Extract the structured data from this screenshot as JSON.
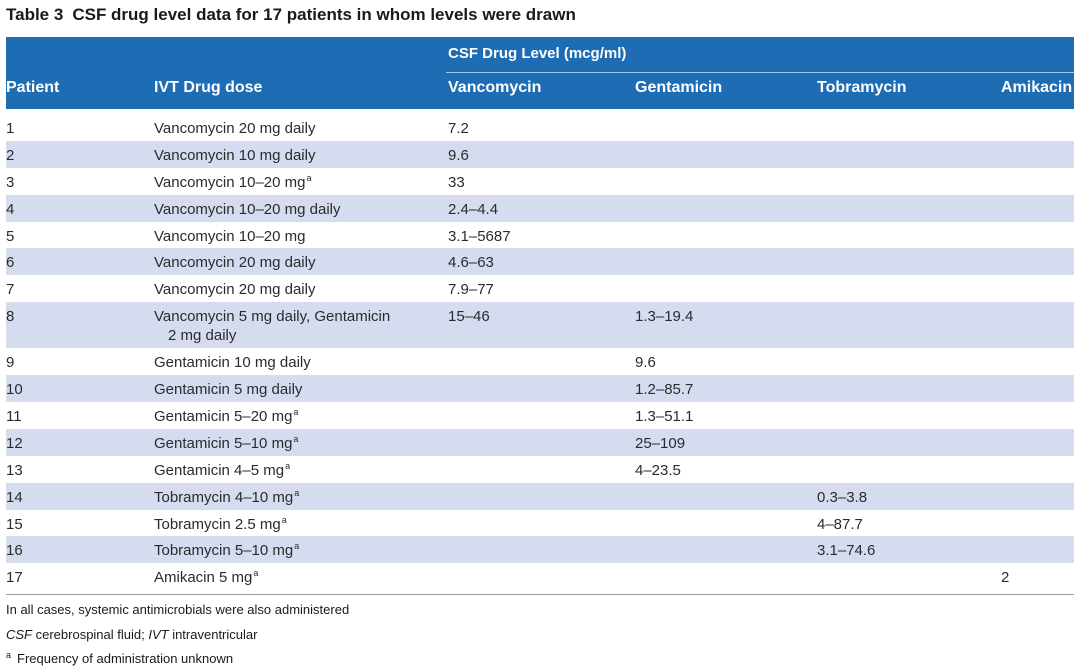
{
  "caption": {
    "label": "Table 3",
    "title": "CSF drug level data for 17 patients in whom levels were drawn"
  },
  "header": {
    "patient": "Patient",
    "dose": "IVT Drug dose",
    "span_title": "CSF Drug Level (mcg/ml)",
    "vancomycin": "Vancomycin",
    "gentamicin": "Gentamicin",
    "tobramycin": "Tobramycin",
    "amikacin": "Amikacin"
  },
  "rows": [
    {
      "patient": "1",
      "dose": "Vancomycin 20 mg daily",
      "dose_sup": "",
      "vancomycin": "7.2",
      "gentamicin": "",
      "tobramycin": "",
      "amikacin": ""
    },
    {
      "patient": "2",
      "dose": "Vancomycin 10 mg daily",
      "dose_sup": "",
      "vancomycin": "9.6",
      "gentamicin": "",
      "tobramycin": "",
      "amikacin": ""
    },
    {
      "patient": "3",
      "dose": "Vancomycin 10–20 mg",
      "dose_sup": "a",
      "vancomycin": "33",
      "gentamicin": "",
      "tobramycin": "",
      "amikacin": ""
    },
    {
      "patient": "4",
      "dose": "Vancomycin 10–20 mg daily",
      "dose_sup": "",
      "vancomycin": "2.4–4.4",
      "gentamicin": "",
      "tobramycin": "",
      "amikacin": ""
    },
    {
      "patient": "5",
      "dose": "Vancomycin 10–20 mg",
      "dose_sup": "",
      "vancomycin": "3.1–5687",
      "gentamicin": "",
      "tobramycin": "",
      "amikacin": ""
    },
    {
      "patient": "6",
      "dose": "Vancomycin 20 mg daily",
      "dose_sup": "",
      "vancomycin": "4.6–63",
      "gentamicin": "",
      "tobramycin": "",
      "amikacin": ""
    },
    {
      "patient": "7",
      "dose": "Vancomycin 20 mg daily",
      "dose_sup": "",
      "vancomycin": "7.9–77",
      "gentamicin": "",
      "tobramycin": "",
      "amikacin": ""
    },
    {
      "patient": "8",
      "dose": "Vancomycin 5 mg daily, Gentamicin",
      "dose_line2": "2 mg daily",
      "dose_sup": "",
      "vancomycin": "15–46",
      "gentamicin": "1.3–19.4",
      "tobramycin": "",
      "amikacin": ""
    },
    {
      "patient": "9",
      "dose": "Gentamicin 10 mg daily",
      "dose_sup": "",
      "vancomycin": "",
      "gentamicin": "9.6",
      "tobramycin": "",
      "amikacin": ""
    },
    {
      "patient": "10",
      "dose": "Gentamicin 5 mg daily",
      "dose_sup": "",
      "vancomycin": "",
      "gentamicin": "1.2–85.7",
      "tobramycin": "",
      "amikacin": ""
    },
    {
      "patient": "11",
      "dose": "Gentamicin 5–20 mg",
      "dose_sup": "a",
      "vancomycin": "",
      "gentamicin": "1.3–51.1",
      "tobramycin": "",
      "amikacin": ""
    },
    {
      "patient": "12",
      "dose": "Gentamicin 5–10 mg",
      "dose_sup": "a",
      "vancomycin": "",
      "gentamicin": "25–109",
      "tobramycin": "",
      "amikacin": ""
    },
    {
      "patient": "13",
      "dose": "Gentamicin 4–5 mg",
      "dose_sup": "a",
      "vancomycin": "",
      "gentamicin": "4–23.5",
      "tobramycin": "",
      "amikacin": ""
    },
    {
      "patient": "14",
      "dose": "Tobramycin 4–10 mg",
      "dose_sup": "a",
      "vancomycin": "",
      "gentamicin": "",
      "tobramycin": "0.3–3.8",
      "amikacin": ""
    },
    {
      "patient": "15",
      "dose": "Tobramycin 2.5 mg",
      "dose_sup": "a",
      "vancomycin": "",
      "gentamicin": "",
      "tobramycin": "4–87.7",
      "amikacin": ""
    },
    {
      "patient": "16",
      "dose": "Tobramycin 5–10 mg",
      "dose_sup": "a",
      "vancomycin": "",
      "gentamicin": "",
      "tobramycin": "3.1–74.6",
      "amikacin": ""
    },
    {
      "patient": "17",
      "dose": "Amikacin 5 mg",
      "dose_sup": "a",
      "vancomycin": "",
      "gentamicin": "",
      "tobramycin": "",
      "amikacin": "2"
    }
  ],
  "footnotes": {
    "note1": "In all cases, systemic antimicrobials were also administered",
    "abbr_csf": "CSF",
    "abbr_csf_text": " cerebrospinal fluid; ",
    "abbr_ivt": "IVT",
    "abbr_ivt_text": " intraventricular",
    "note_a_mark": "a",
    "note_a_text": "Frequency of administration unknown"
  },
  "colors": {
    "header_bg": "#1e6db4",
    "row_shade": "#d6dcf0"
  }
}
